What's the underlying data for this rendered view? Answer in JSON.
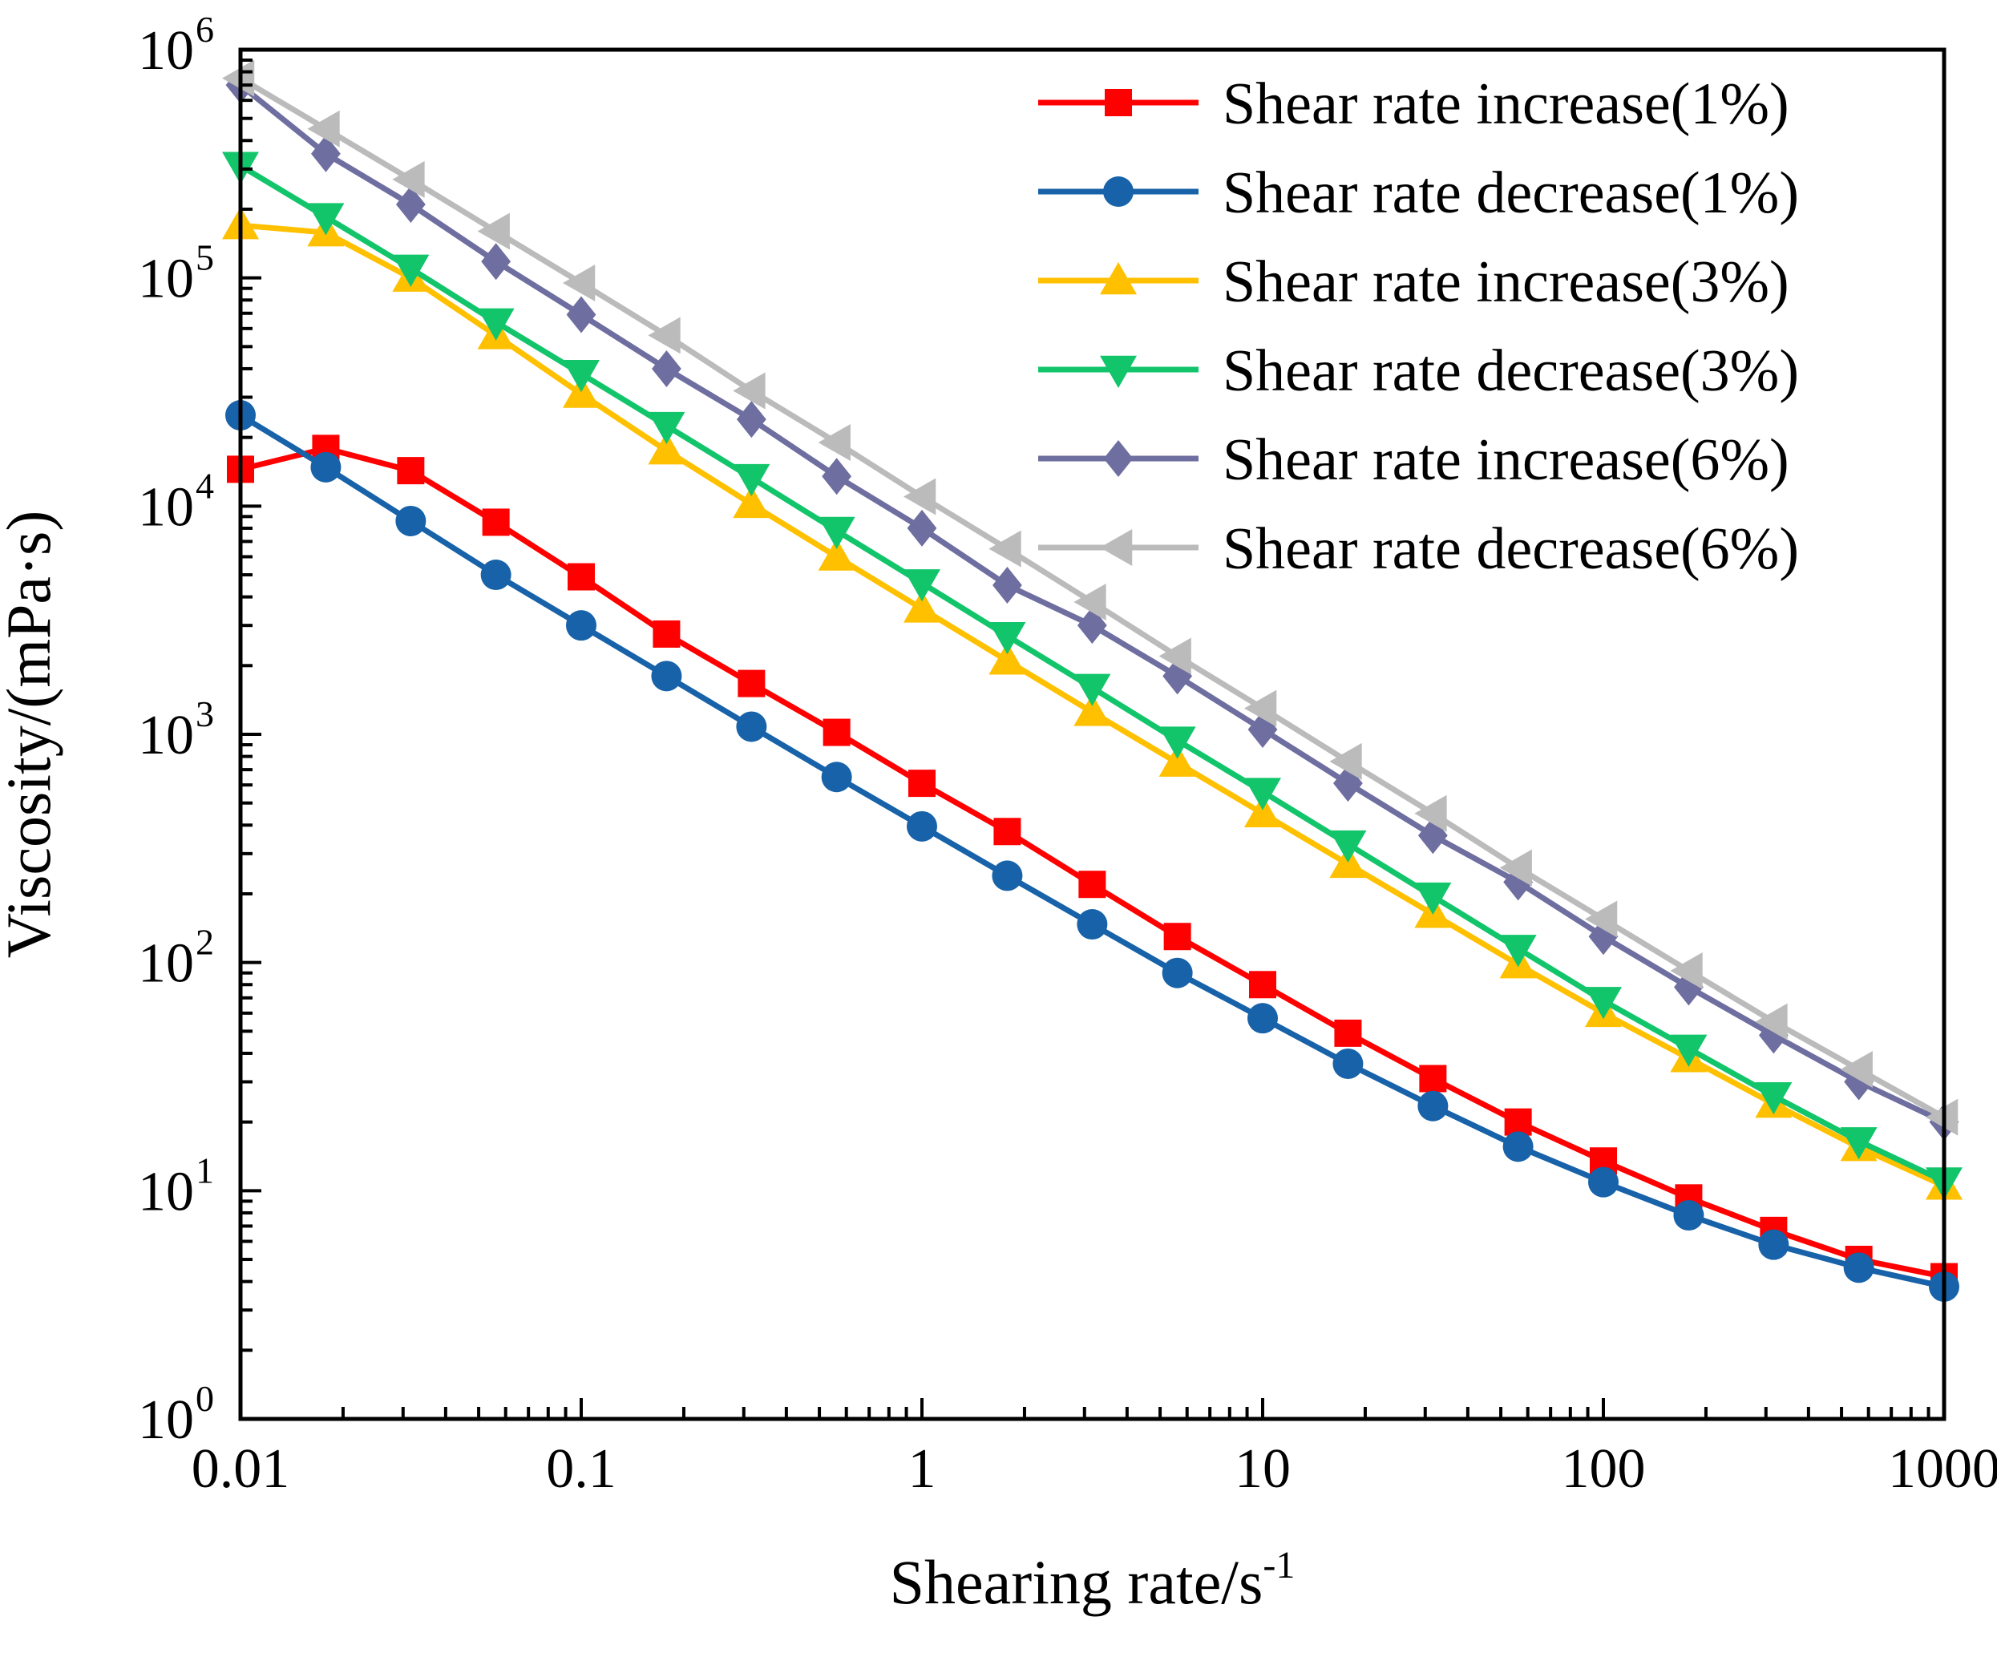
{
  "chart_data": {
    "type": "line",
    "xscale": "log",
    "yscale": "log",
    "xlabel": "Shearing rate/s",
    "xlabel_superscript": "-1",
    "ylabel": "Viscosity/(mPa·s)",
    "xlim": [
      0.01,
      1000
    ],
    "ylim": [
      1,
      1000000
    ],
    "x_ticks": [
      {
        "value": 0.01,
        "label": "0.01"
      },
      {
        "value": 0.1,
        "label": "0.1"
      },
      {
        "value": 1,
        "label": "1"
      },
      {
        "value": 10,
        "label": "10"
      },
      {
        "value": 100,
        "label": "100"
      },
      {
        "value": 1000,
        "label": "1000"
      }
    ],
    "y_ticks": [
      {
        "value": 1,
        "base": "10",
        "exp": "0"
      },
      {
        "value": 10,
        "base": "10",
        "exp": "1"
      },
      {
        "value": 100,
        "base": "10",
        "exp": "2"
      },
      {
        "value": 1000,
        "base": "10",
        "exp": "3"
      },
      {
        "value": 10000,
        "base": "10",
        "exp": "4"
      },
      {
        "value": 100000,
        "base": "10",
        "exp": "5"
      },
      {
        "value": 1000000,
        "base": "10",
        "exp": "6"
      }
    ],
    "legend_position": "top-right",
    "x": [
      0.01,
      0.0178,
      0.0316,
      0.0562,
      0.1,
      0.178,
      0.316,
      0.562,
      1,
      1.78,
      3.16,
      5.62,
      10,
      17.8,
      31.6,
      56.2,
      100,
      178,
      316,
      562,
      1000
    ],
    "series": [
      {
        "name": "Shear rate increase(1%)",
        "color": "#ff0000",
        "marker": "square",
        "values": [
          14500,
          17900,
          14300,
          8500,
          4900,
          2750,
          1670,
          1020,
          610,
          375,
          220,
          130,
          80,
          49,
          31,
          20,
          13.5,
          9.3,
          6.7,
          5.0,
          4.2
        ]
      },
      {
        "name": "Shear rate decrease(1%)",
        "color": "#1762a8",
        "marker": "circle",
        "values": [
          25000,
          14800,
          8600,
          5000,
          3000,
          1800,
          1080,
          650,
          395,
          240,
          147,
          90,
          57,
          36,
          23.5,
          15.6,
          10.9,
          7.8,
          5.8,
          4.6,
          3.8
        ]
      },
      {
        "name": "Shear rate increase(3%)",
        "color": "#ffc000",
        "marker": "triangle-up",
        "values": [
          170000,
          158000,
          100000,
          56000,
          31000,
          17500,
          10200,
          6000,
          3550,
          2100,
          1250,
          750,
          450,
          270,
          163,
          98,
          60,
          38,
          24,
          15.5,
          10.5
        ]
      },
      {
        "name": "Shear rate decrease(3%)",
        "color": "#12c56b",
        "marker": "triangle-down",
        "values": [
          310000,
          185000,
          110000,
          64000,
          38000,
          22500,
          13300,
          7800,
          4600,
          2700,
          1600,
          940,
          560,
          330,
          195,
          115,
          68,
          42,
          26,
          16.5,
          11
        ]
      },
      {
        "name": "Shear rate increase(6%)",
        "color": "#6e6ea0",
        "marker": "diamond",
        "values": [
          700000,
          350000,
          210000,
          118000,
          69000,
          40000,
          24000,
          13500,
          8000,
          4500,
          3000,
          1800,
          1050,
          610,
          360,
          225,
          130,
          78,
          48,
          30,
          20
        ]
      },
      {
        "name": "Shear rate decrease(6%)",
        "color": "#bbbbbb",
        "marker": "triangle-left",
        "values": [
          750000,
          450000,
          270000,
          160000,
          95000,
          56000,
          32000,
          19000,
          11000,
          6500,
          3800,
          2200,
          1300,
          760,
          450,
          260,
          155,
          92,
          55,
          34,
          21
        ]
      }
    ]
  }
}
